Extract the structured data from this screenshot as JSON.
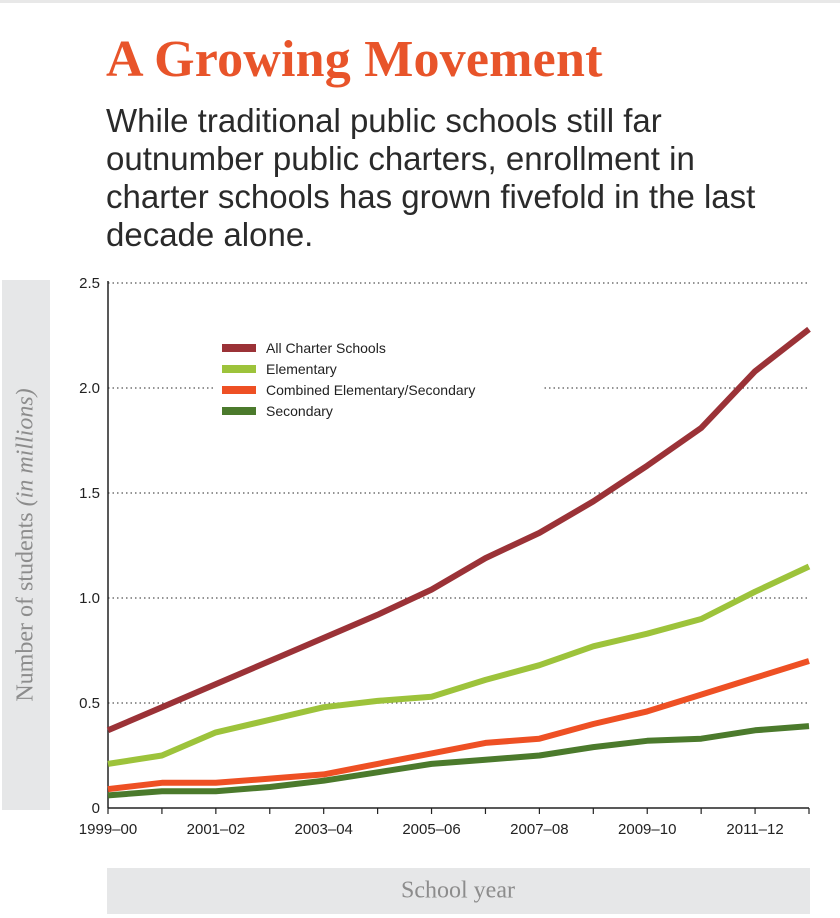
{
  "header": {
    "title": "A Growing Movement",
    "subtitle": "While traditional public schools still far outnumber public charters, enrollment in charter schools has grown fivefold in the last decade alone."
  },
  "chart_data": {
    "type": "line",
    "xlabel": "School year",
    "ylabel": "Number of students (in millions)",
    "ylim": [
      0,
      2.5
    ],
    "y_ticks": [
      "0",
      "0.5",
      "1.0",
      "1.5",
      "2.0",
      "2.5"
    ],
    "y_tick_values": [
      0,
      0.5,
      1.0,
      1.5,
      2.0,
      2.5
    ],
    "x_tick_labels": [
      "1999–00",
      "2001–02",
      "2003–04",
      "2005–06",
      "2007–08",
      "2009–10",
      "2011–12"
    ],
    "x_tick_positions": [
      0,
      2,
      4,
      6,
      8,
      10,
      12
    ],
    "x": [
      "1999–00",
      "2000–01",
      "2001–02",
      "2002–03",
      "2003–04",
      "2004–05",
      "2005–06",
      "2006–07",
      "2007–08",
      "2008–09",
      "2009–10",
      "2010–11",
      "2011–12",
      "2012–13"
    ],
    "grid": "horizontal dotted",
    "legend_position": "top-left",
    "series": [
      {
        "name": "All Charter Schools",
        "color": "#9b3237",
        "values": [
          0.37,
          0.48,
          0.59,
          0.7,
          0.81,
          0.92,
          1.04,
          1.19,
          1.31,
          1.46,
          1.63,
          1.81,
          2.08,
          2.28
        ]
      },
      {
        "name": "Elementary",
        "color": "#9dc33b",
        "values": [
          0.21,
          0.25,
          0.36,
          0.42,
          0.48,
          0.51,
          0.53,
          0.61,
          0.68,
          0.77,
          0.83,
          0.9,
          1.03,
          1.15
        ]
      },
      {
        "name": "Combined Elementary/Secondary",
        "color": "#ee5024",
        "values": [
          0.09,
          0.12,
          0.12,
          0.14,
          0.16,
          0.21,
          0.26,
          0.31,
          0.33,
          0.4,
          0.46,
          0.54,
          0.62,
          0.7
        ]
      },
      {
        "name": "Secondary",
        "color": "#4b7a2c",
        "values": [
          0.06,
          0.08,
          0.08,
          0.1,
          0.13,
          0.17,
          0.21,
          0.23,
          0.25,
          0.29,
          0.32,
          0.33,
          0.37,
          0.39
        ]
      }
    ]
  }
}
